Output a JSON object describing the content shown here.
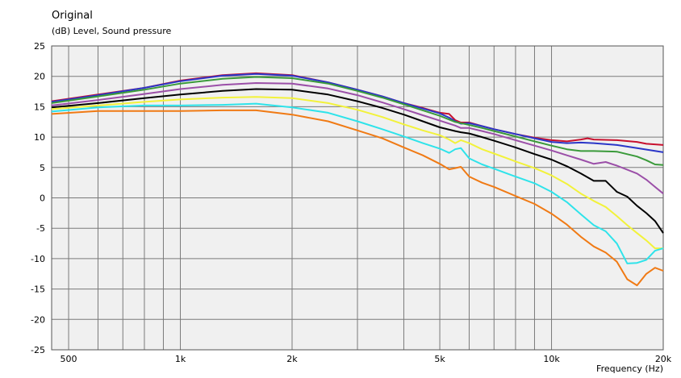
{
  "chart_data": {
    "type": "line",
    "title": "Original",
    "subtitle": "(dB)  Level, Sound pressure",
    "xlabel": "Frequency  (Hz)",
    "ylabel": "",
    "xscale": "log",
    "xlim": [
      450,
      20000
    ],
    "ylim": [
      -25,
      25
    ],
    "y_ticks": [
      25,
      20,
      15,
      10,
      5,
      0,
      -5,
      -10,
      -15,
      -20,
      -25
    ],
    "x_tick_labels": [
      {
        "value": 500,
        "label": "500"
      },
      {
        "value": 1000,
        "label": "1k"
      },
      {
        "value": 2000,
        "label": "2k"
      },
      {
        "value": 5000,
        "label": "5k"
      },
      {
        "value": 10000,
        "label": "10k"
      },
      {
        "value": 20000,
        "label": "20k"
      }
    ],
    "grid": true,
    "background": "#f0f0f0",
    "series": [
      {
        "color": "#c8102e",
        "points": [
          [
            450,
            15.9
          ],
          [
            600,
            17.0
          ],
          [
            800,
            18.1
          ],
          [
            1000,
            19.3
          ],
          [
            1300,
            20.2
          ],
          [
            1600,
            20.5
          ],
          [
            2000,
            20.2
          ],
          [
            2500,
            19.0
          ],
          [
            3000,
            17.8
          ],
          [
            3500,
            16.7
          ],
          [
            4000,
            15.6
          ],
          [
            4500,
            14.8
          ],
          [
            5000,
            14.0
          ],
          [
            5300,
            13.8
          ],
          [
            5500,
            12.8
          ],
          [
            5700,
            12.4
          ],
          [
            6000,
            12.4
          ],
          [
            6500,
            11.8
          ],
          [
            7000,
            11.3
          ],
          [
            8000,
            10.5
          ],
          [
            9000,
            9.9
          ],
          [
            10000,
            9.5
          ],
          [
            11000,
            9.3
          ],
          [
            12000,
            9.6
          ],
          [
            12500,
            9.8
          ],
          [
            13000,
            9.6
          ],
          [
            15000,
            9.5
          ],
          [
            17000,
            9.2
          ],
          [
            18000,
            8.9
          ],
          [
            20000,
            8.7
          ]
        ]
      },
      {
        "color": "#2b36c8",
        "points": [
          [
            450,
            15.8
          ],
          [
            600,
            16.9
          ],
          [
            800,
            18.1
          ],
          [
            1000,
            19.2
          ],
          [
            1300,
            20.1
          ],
          [
            1600,
            20.4
          ],
          [
            2000,
            20.1
          ],
          [
            2500,
            19.0
          ],
          [
            3000,
            17.8
          ],
          [
            3500,
            16.7
          ],
          [
            4000,
            15.6
          ],
          [
            4500,
            14.7
          ],
          [
            5000,
            13.9
          ],
          [
            5300,
            13.2
          ],
          [
            5500,
            12.6
          ],
          [
            5700,
            12.2
          ],
          [
            6000,
            12.3
          ],
          [
            6500,
            11.8
          ],
          [
            7000,
            11.3
          ],
          [
            8000,
            10.5
          ],
          [
            9000,
            9.8
          ],
          [
            10000,
            9.2
          ],
          [
            11000,
            9.0
          ],
          [
            12000,
            9.1
          ],
          [
            13000,
            9.0
          ],
          [
            15000,
            8.7
          ],
          [
            17000,
            8.2
          ],
          [
            20000,
            7.5
          ]
        ]
      },
      {
        "color": "#3a9a3a",
        "points": [
          [
            450,
            15.6
          ],
          [
            600,
            16.7
          ],
          [
            800,
            17.8
          ],
          [
            1000,
            18.8
          ],
          [
            1300,
            19.6
          ],
          [
            1600,
            19.9
          ],
          [
            2000,
            19.7
          ],
          [
            2500,
            18.8
          ],
          [
            3000,
            17.6
          ],
          [
            3500,
            16.5
          ],
          [
            4000,
            15.4
          ],
          [
            4500,
            14.4
          ],
          [
            5000,
            13.5
          ],
          [
            5500,
            12.5
          ],
          [
            5700,
            12.3
          ],
          [
            6000,
            12.0
          ],
          [
            6500,
            11.5
          ],
          [
            7000,
            11.0
          ],
          [
            8000,
            10.1
          ],
          [
            9000,
            9.3
          ],
          [
            10000,
            8.6
          ],
          [
            11000,
            8.0
          ],
          [
            12000,
            7.7
          ],
          [
            13000,
            7.7
          ],
          [
            15000,
            7.6
          ],
          [
            17000,
            6.8
          ],
          [
            18000,
            6.2
          ],
          [
            19000,
            5.5
          ],
          [
            20000,
            5.4
          ]
        ]
      },
      {
        "color": "#9b4fa8",
        "points": [
          [
            450,
            15.2
          ],
          [
            600,
            16.1
          ],
          [
            800,
            17.1
          ],
          [
            1000,
            17.9
          ],
          [
            1300,
            18.6
          ],
          [
            1600,
            18.9
          ],
          [
            2000,
            18.8
          ],
          [
            2500,
            18.0
          ],
          [
            3000,
            16.9
          ],
          [
            3500,
            15.7
          ],
          [
            4000,
            14.6
          ],
          [
            4500,
            13.6
          ],
          [
            5000,
            12.7
          ],
          [
            5500,
            11.9
          ],
          [
            5700,
            11.5
          ],
          [
            6000,
            11.5
          ],
          [
            6500,
            11.0
          ],
          [
            7000,
            10.5
          ],
          [
            8000,
            9.5
          ],
          [
            9000,
            8.6
          ],
          [
            10000,
            7.8
          ],
          [
            11000,
            7.0
          ],
          [
            12000,
            6.3
          ],
          [
            13000,
            5.6
          ],
          [
            14000,
            5.9
          ],
          [
            15000,
            5.3
          ],
          [
            17000,
            4.0
          ],
          [
            18000,
            3.0
          ],
          [
            19000,
            1.8
          ],
          [
            20000,
            0.7
          ]
        ]
      },
      {
        "color": "#000000",
        "points": [
          [
            450,
            14.9
          ],
          [
            600,
            15.6
          ],
          [
            800,
            16.4
          ],
          [
            1000,
            17.0
          ],
          [
            1300,
            17.6
          ],
          [
            1600,
            17.9
          ],
          [
            2000,
            17.8
          ],
          [
            2500,
            17.0
          ],
          [
            3000,
            15.9
          ],
          [
            3500,
            14.8
          ],
          [
            4000,
            13.7
          ],
          [
            4500,
            12.6
          ],
          [
            5000,
            11.6
          ],
          [
            5500,
            11.0
          ],
          [
            5700,
            10.8
          ],
          [
            6000,
            10.6
          ],
          [
            6500,
            10.0
          ],
          [
            7000,
            9.4
          ],
          [
            8000,
            8.3
          ],
          [
            9000,
            7.2
          ],
          [
            10000,
            6.3
          ],
          [
            11000,
            5.2
          ],
          [
            12000,
            4.0
          ],
          [
            13000,
            2.8
          ],
          [
            14000,
            2.8
          ],
          [
            15000,
            1.0
          ],
          [
            16000,
            0.2
          ],
          [
            17000,
            -1.3
          ],
          [
            18000,
            -2.5
          ],
          [
            19000,
            -3.8
          ],
          [
            20000,
            -5.8
          ]
        ]
      },
      {
        "color": "#f2f23a",
        "points": [
          [
            450,
            14.6
          ],
          [
            600,
            15.2
          ],
          [
            800,
            15.8
          ],
          [
            1000,
            16.2
          ],
          [
            1300,
            16.5
          ],
          [
            1600,
            16.6
          ],
          [
            2000,
            16.4
          ],
          [
            2500,
            15.6
          ],
          [
            3000,
            14.5
          ],
          [
            3500,
            13.3
          ],
          [
            4000,
            12.1
          ],
          [
            4500,
            11.1
          ],
          [
            5000,
            10.3
          ],
          [
            5300,
            9.6
          ],
          [
            5500,
            9.0
          ],
          [
            5700,
            9.5
          ],
          [
            6000,
            9.0
          ],
          [
            6500,
            8.0
          ],
          [
            7000,
            7.3
          ],
          [
            8000,
            6.0
          ],
          [
            9000,
            4.9
          ],
          [
            10000,
            3.7
          ],
          [
            11000,
            2.3
          ],
          [
            12000,
            0.7
          ],
          [
            13000,
            -0.5
          ],
          [
            14000,
            -1.5
          ],
          [
            15000,
            -3.0
          ],
          [
            16000,
            -4.5
          ],
          [
            17000,
            -5.8
          ],
          [
            18000,
            -7.0
          ],
          [
            19000,
            -8.3
          ],
          [
            20000,
            -8.3
          ]
        ]
      },
      {
        "color": "#2ee3ea",
        "points": [
          [
            450,
            14.2
          ],
          [
            600,
            14.9
          ],
          [
            800,
            15.2
          ],
          [
            1000,
            15.2
          ],
          [
            1300,
            15.3
          ],
          [
            1600,
            15.5
          ],
          [
            2000,
            14.9
          ],
          [
            2500,
            14.0
          ],
          [
            3000,
            12.6
          ],
          [
            3500,
            11.3
          ],
          [
            4000,
            10.1
          ],
          [
            4500,
            9.0
          ],
          [
            5000,
            8.1
          ],
          [
            5300,
            7.4
          ],
          [
            5500,
            8.0
          ],
          [
            5700,
            8.2
          ],
          [
            6000,
            6.5
          ],
          [
            6500,
            5.5
          ],
          [
            7000,
            4.8
          ],
          [
            8000,
            3.5
          ],
          [
            9000,
            2.4
          ],
          [
            10000,
            1.0
          ],
          [
            11000,
            -0.7
          ],
          [
            12000,
            -2.7
          ],
          [
            13000,
            -4.5
          ],
          [
            14000,
            -5.5
          ],
          [
            15000,
            -7.5
          ],
          [
            16000,
            -10.8
          ],
          [
            17000,
            -10.7
          ],
          [
            18000,
            -10.2
          ],
          [
            19000,
            -8.7
          ],
          [
            20000,
            -8.3
          ]
        ]
      },
      {
        "color": "#f07a14",
        "points": [
          [
            450,
            13.8
          ],
          [
            600,
            14.3
          ],
          [
            800,
            14.3
          ],
          [
            1000,
            14.3
          ],
          [
            1300,
            14.4
          ],
          [
            1600,
            14.4
          ],
          [
            2000,
            13.7
          ],
          [
            2500,
            12.6
          ],
          [
            3000,
            11.1
          ],
          [
            3500,
            9.8
          ],
          [
            4000,
            8.3
          ],
          [
            4500,
            7.0
          ],
          [
            5000,
            5.6
          ],
          [
            5300,
            4.7
          ],
          [
            5500,
            4.9
          ],
          [
            5700,
            5.1
          ],
          [
            6000,
            3.5
          ],
          [
            6500,
            2.5
          ],
          [
            7000,
            1.8
          ],
          [
            8000,
            0.3
          ],
          [
            9000,
            -1.0
          ],
          [
            10000,
            -2.6
          ],
          [
            11000,
            -4.4
          ],
          [
            12000,
            -6.4
          ],
          [
            13000,
            -8.0
          ],
          [
            14000,
            -9.0
          ],
          [
            15000,
            -10.5
          ],
          [
            16000,
            -13.4
          ],
          [
            17000,
            -14.4
          ],
          [
            18000,
            -12.5
          ],
          [
            19000,
            -11.5
          ],
          [
            20000,
            -12.0
          ]
        ]
      }
    ]
  }
}
